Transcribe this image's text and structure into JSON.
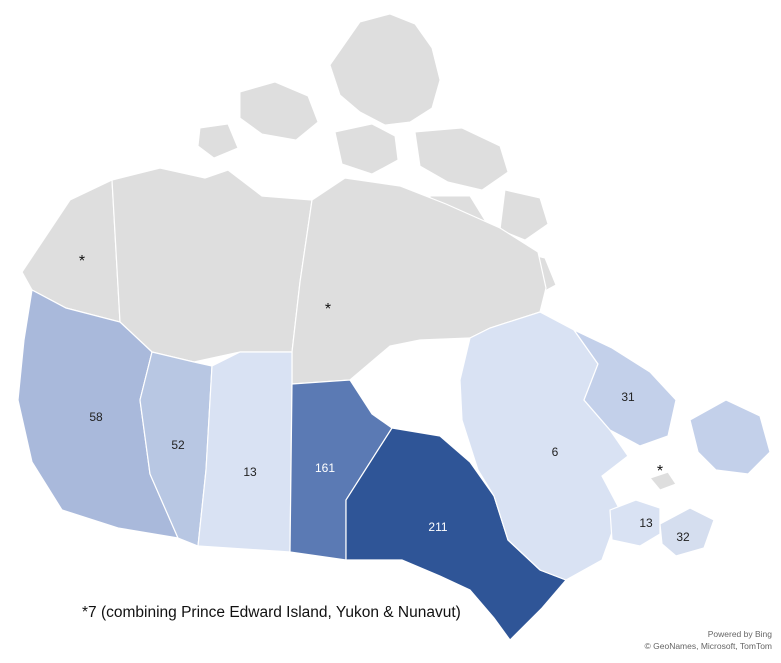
{
  "map": {
    "regions": [
      {
        "name": "Yukon",
        "label": "*",
        "shade": "#dedede"
      },
      {
        "name": "Northwest Territories",
        "label": "",
        "shade": "#dedede"
      },
      {
        "name": "Nunavut",
        "label": "*",
        "shade": "#dedede"
      },
      {
        "name": "British Columbia",
        "label": "58",
        "shade": "#a9b9db"
      },
      {
        "name": "Alberta",
        "label": "52",
        "shade": "#b8c7e3"
      },
      {
        "name": "Saskatchewan",
        "label": "13",
        "shade": "#d9e2f3"
      },
      {
        "name": "Manitoba",
        "label": "161",
        "shade": "#5b7ab4"
      },
      {
        "name": "Ontario",
        "label": "211",
        "shade": "#2f5597"
      },
      {
        "name": "Quebec",
        "label": "6",
        "shade": "#d9e2f3"
      },
      {
        "name": "Newfoundland and Labrador",
        "label": "31",
        "shade": "#c3d0ea"
      },
      {
        "name": "New Brunswick",
        "label": "13",
        "shade": "#d9e2f3"
      },
      {
        "name": "Nova Scotia",
        "label": "32",
        "shade": "#d5deef"
      },
      {
        "name": "Prince Edward Island",
        "label": "*",
        "shade": "#dedede"
      }
    ]
  },
  "footnote": "*7 (combining Prince Edward Island, Yukon & Nunavut)",
  "attribution": {
    "line1": "Powered by Bing",
    "line2": "© GeoNames, Microsoft, TomTom"
  }
}
